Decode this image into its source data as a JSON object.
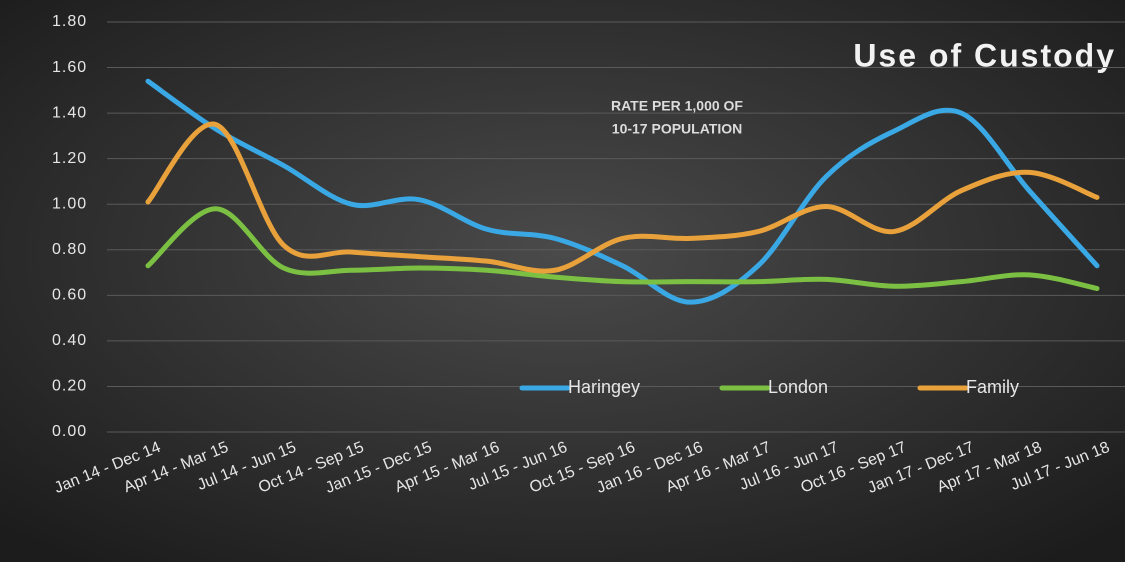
{
  "chart_data": {
    "type": "line",
    "title": "Use of Custody",
    "annotation": [
      "RATE PER 1,000 OF",
      "10-17 POPULATION"
    ],
    "categories": [
      "Jan 14 - Dec 14",
      "Apr 14 - Mar 15",
      "Jul 14 - Jun 15",
      "Oct 14 - Sep 15",
      "Jan 15 - Dec 15",
      "Apr 15 - Mar 16",
      "Jul 15 - Jun 16",
      "Oct 15 - Sep 16",
      "Jan 16 - Dec 16",
      "Apr 16 - Mar 17",
      "Jul 16 - Jun 17",
      "Oct 16 - Sep 17",
      "Jan 17 - Dec 17",
      "Apr 17 - Mar 18",
      "Jul 17 - Jun 18"
    ],
    "series": [
      {
        "name": "Haringey",
        "color": "#3aa8e4",
        "values": [
          1.54,
          1.33,
          1.17,
          1.0,
          1.02,
          0.89,
          0.85,
          0.73,
          0.57,
          0.73,
          1.12,
          1.32,
          1.4,
          1.06,
          0.73
        ]
      },
      {
        "name": "London",
        "color": "#7bc043",
        "values": [
          0.73,
          0.98,
          0.72,
          0.71,
          0.72,
          0.71,
          0.68,
          0.66,
          0.66,
          0.66,
          0.67,
          0.64,
          0.66,
          0.69,
          0.63
        ]
      },
      {
        "name": "Family",
        "color": "#e9a23b",
        "values": [
          1.01,
          1.35,
          0.82,
          0.79,
          0.77,
          0.75,
          0.71,
          0.85,
          0.85,
          0.88,
          0.99,
          0.88,
          1.06,
          1.14,
          1.03
        ]
      }
    ],
    "ylim": [
      0,
      1.8
    ],
    "yticks": [
      {
        "value": 0,
        "label": "0.00"
      },
      {
        "value": 0.2,
        "label": "0.20"
      },
      {
        "value": 0.4,
        "label": "0.40"
      },
      {
        "value": 0.6,
        "label": "0.60"
      },
      {
        "value": 0.8,
        "label": "0.80"
      },
      {
        "value": 1,
        "label": "1.00"
      },
      {
        "value": 1.2,
        "label": "1.20"
      },
      {
        "value": 1.4,
        "label": "1.40"
      },
      {
        "value": 1.6,
        "label": "1.60"
      },
      {
        "value": 1.8,
        "label": "1.80"
      }
    ],
    "grid": true,
    "smooth": true,
    "legend": "bottom"
  }
}
